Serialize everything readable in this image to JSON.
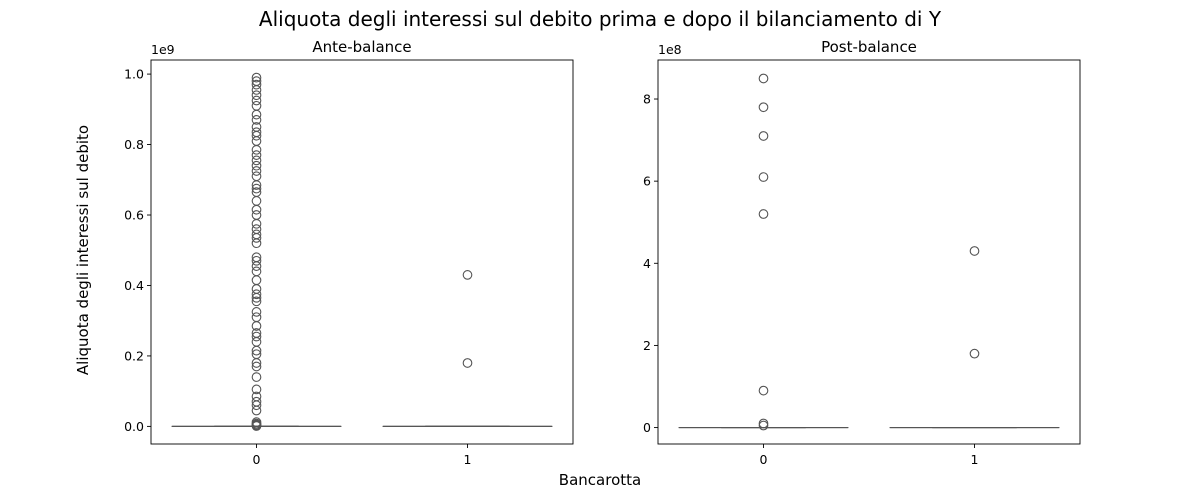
{
  "figure": {
    "suptitle": "Aliquota degli interessi sul debito prima e dopo il bilanciamento di Y",
    "shared_ylabel": "Aliquota degli interessi sul debito",
    "shared_xlabel": "Bancarotta"
  },
  "chart_data": [
    {
      "type": "box",
      "title": "Ante-balance",
      "xlabel": "Bancarotta",
      "ylabel": "Aliquota degli interessi sul debito",
      "categories": [
        "0",
        "1"
      ],
      "offset_label": "1e9",
      "scale": 1000000000,
      "ylim": [
        -0.05,
        1.04
      ],
      "yticks": [
        0.0,
        0.2,
        0.4,
        0.6,
        0.8,
        1.0
      ],
      "ytick_labels": [
        "0.0",
        "0.2",
        "0.4",
        "0.6",
        "0.8",
        "1.0"
      ],
      "grid": false,
      "series": [
        {
          "category": "0",
          "median": 0.0,
          "q1": 0.0,
          "q3": 0.0,
          "whisker_low": 0.0,
          "whisker_high": 0.0,
          "outliers": [
            0.001,
            0.003,
            0.005,
            0.008,
            0.012,
            0.045,
            0.06,
            0.07,
            0.085,
            0.105,
            0.14,
            0.17,
            0.18,
            0.205,
            0.215,
            0.24,
            0.255,
            0.265,
            0.285,
            0.31,
            0.325,
            0.355,
            0.365,
            0.375,
            0.39,
            0.415,
            0.44,
            0.455,
            0.47,
            0.48,
            0.52,
            0.535,
            0.545,
            0.56,
            0.575,
            0.6,
            0.615,
            0.64,
            0.665,
            0.675,
            0.685,
            0.71,
            0.725,
            0.74,
            0.755,
            0.77,
            0.785,
            0.81,
            0.825,
            0.835,
            0.85,
            0.87,
            0.885,
            0.91,
            0.925,
            0.94,
            0.955,
            0.97,
            0.98,
            0.99
          ]
        },
        {
          "category": "1",
          "median": 0.0,
          "q1": 0.0,
          "q3": 0.0,
          "whisker_low": 0.0,
          "whisker_high": 0.0,
          "outliers": [
            0.18,
            0.43
          ]
        }
      ]
    },
    {
      "type": "box",
      "title": "Post-balance",
      "xlabel": "Bancarotta",
      "ylabel": "Aliquota degli interessi sul debito",
      "categories": [
        "0",
        "1"
      ],
      "offset_label": "1e8",
      "scale": 100000000,
      "ylim": [
        -0.4,
        8.95
      ],
      "yticks": [
        0,
        2,
        4,
        6,
        8
      ],
      "ytick_labels": [
        "0",
        "2",
        "4",
        "6",
        "8"
      ],
      "grid": false,
      "series": [
        {
          "category": "0",
          "median": 0.0,
          "q1": 0.0,
          "q3": 0.0,
          "whisker_low": 0.0,
          "whisker_high": 0.0,
          "outliers": [
            0.05,
            0.1,
            0.9,
            5.2,
            6.1,
            7.1,
            7.8,
            8.5
          ]
        },
        {
          "category": "1",
          "median": 0.0,
          "q1": 0.0,
          "q3": 0.0,
          "whisker_low": 0.0,
          "whisker_high": 0.0,
          "outliers": [
            1.8,
            4.3
          ]
        }
      ]
    }
  ]
}
